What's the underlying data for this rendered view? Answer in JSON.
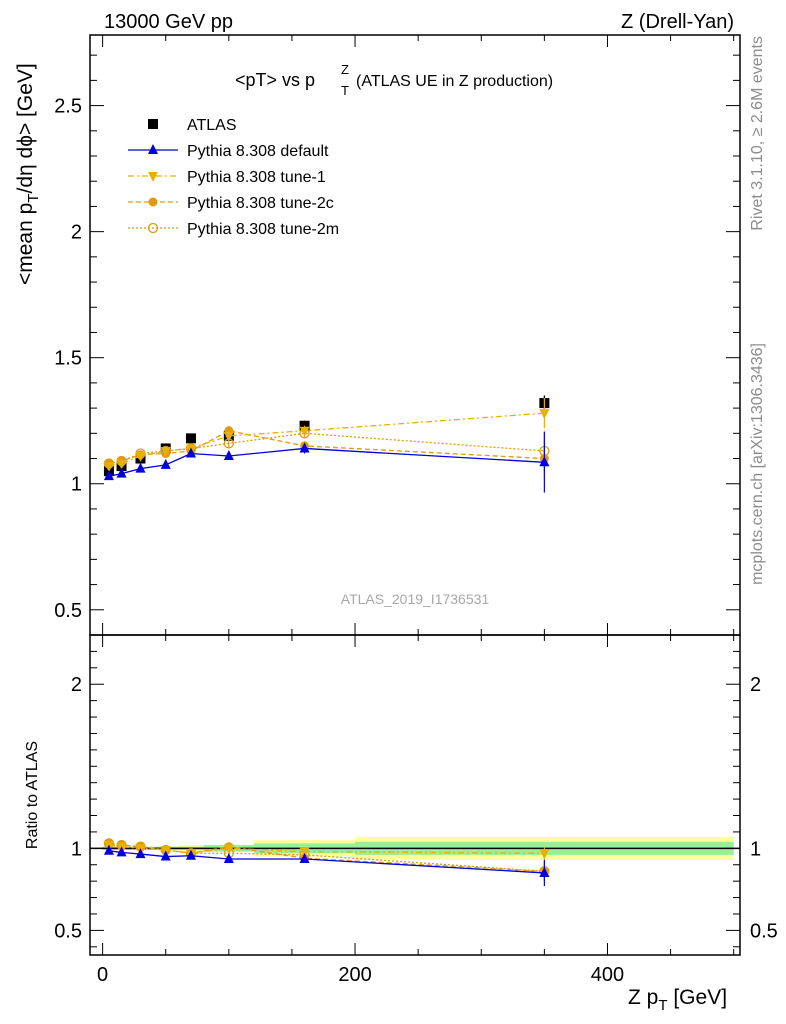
{
  "header": {
    "left": "13000 GeV pp",
    "right": "Z (Drell-Yan)"
  },
  "title": {
    "main": "<pT> vs p",
    "sup": "Z",
    "sub": "T",
    "tail": "(ATLAS UE in Z production)"
  },
  "y_label": {
    "pre": "<mean p",
    "sub": "T",
    "post": "/dη dϕ> [GeV]"
  },
  "ratio_label": "Ratio to ATLAS",
  "x_label": {
    "pre": "Z p",
    "sub": "T",
    "post": " [GeV]"
  },
  "side_text": {
    "rivet": "Rivet 3.1.10, ≥ 2.6M events",
    "mcplots": "mcplots.cern.ch [arXiv:1306.3436]"
  },
  "watermark": "ATLAS_2019_I1736531",
  "legend": [
    {
      "label": "ATLAS",
      "color": "#000000",
      "marker": "square"
    },
    {
      "label": "Pythia 8.308 default",
      "color": "#0000dd",
      "marker": "triangle-up"
    },
    {
      "label": "Pythia 8.308 tune-1",
      "color": "#e8b000",
      "marker": "triangle-down"
    },
    {
      "label": "Pythia 8.308 tune-2c",
      "color": "#e09a10",
      "marker": "circle-filled"
    },
    {
      "label": "Pythia 8.308 tune-2m",
      "color": "#e09a10",
      "marker": "circle-open"
    }
  ],
  "chart_data": {
    "type": "line",
    "x_label": "Z pT [GeV]",
    "y_label": "<mean pT/dη dϕ> [GeV]",
    "xlim": [
      -10,
      505
    ],
    "ylim": [
      0.4,
      2.78
    ],
    "ratio_ylim": [
      0.35,
      2.3
    ],
    "x_ticks": [
      "0",
      "200",
      "400"
    ],
    "y_ticks": [
      "0.5",
      "1",
      "1.5",
      "2",
      "2.5"
    ],
    "ratio_y_ticks": [
      "0.5",
      "1",
      "2"
    ],
    "x": [
      5,
      15,
      30,
      50,
      70,
      100,
      160,
      350
    ],
    "bin_edges": [
      0,
      10,
      20,
      40,
      60,
      80,
      120,
      200,
      500
    ],
    "atlas": {
      "name": "ATLAS",
      "values": [
        1.05,
        1.07,
        1.1,
        1.14,
        1.18,
        1.19,
        1.23,
        1.32
      ],
      "errors": [
        0.01,
        0.01,
        0.01,
        0.01,
        0.01,
        0.02,
        0.02,
        0.03
      ]
    },
    "ratio_band_inner": [
      0.01,
      0.01,
      0.01,
      0.01,
      0.01,
      0.02,
      0.03,
      0.04
    ],
    "ratio_band_outer": [
      0.01,
      0.01,
      0.01,
      0.01,
      0.02,
      0.02,
      0.05,
      0.07
    ],
    "series": [
      {
        "name": "Pythia 8.308 default",
        "values": [
          1.03,
          1.04,
          1.06,
          1.075,
          1.12,
          1.11,
          1.14,
          1.085
        ],
        "errors": [
          0.005,
          0.005,
          0.005,
          0.01,
          0.01,
          0.01,
          0.02,
          0.12
        ],
        "ratio": [
          0.985,
          0.975,
          0.965,
          0.95,
          0.955,
          0.935,
          0.935,
          0.85
        ],
        "ratio_errors": [
          0.01,
          0.01,
          0.01,
          0.01,
          0.01,
          0.01,
          0.02,
          0.08
        ]
      },
      {
        "name": "Pythia 8.308 tune-1",
        "values": [
          1.07,
          1.08,
          1.11,
          1.13,
          1.14,
          1.19,
          1.21,
          1.28
        ],
        "errors": [
          0.005,
          0.005,
          0.005,
          0.01,
          0.01,
          0.02,
          0.02,
          0.06
        ],
        "ratio": [
          1.02,
          1.01,
          1.0,
          0.99,
          0.97,
          1.0,
          0.98,
          0.97
        ],
        "ratio_errors": [
          0.01,
          0.01,
          0.01,
          0.01,
          0.01,
          0.02,
          0.02,
          0.04
        ]
      },
      {
        "name": "Pythia 8.308 tune-2c",
        "values": [
          1.08,
          1.09,
          1.115,
          1.12,
          1.13,
          1.21,
          1.15,
          1.1
        ],
        "errors": [
          0.005,
          0.005,
          0.005,
          0.01,
          0.01,
          0.02,
          0.02,
          0.08
        ],
        "ratio": [
          1.03,
          1.02,
          1.01,
          0.99,
          0.97,
          1.01,
          0.94,
          0.86
        ],
        "ratio_errors": [
          0.01,
          0.01,
          0.01,
          0.01,
          0.01,
          0.02,
          0.02,
          0.06
        ]
      },
      {
        "name": "Pythia 8.308 tune-2m",
        "values": [
          1.08,
          1.09,
          1.12,
          1.13,
          1.14,
          1.16,
          1.2,
          1.13
        ],
        "errors": [
          0.005,
          0.005,
          0.005,
          0.01,
          0.01,
          0.02,
          0.02,
          0.08
        ],
        "ratio": [
          1.03,
          1.02,
          1.01,
          0.99,
          0.97,
          0.97,
          0.96,
          0.86
        ],
        "ratio_errors": [
          0.01,
          0.01,
          0.01,
          0.01,
          0.01,
          0.02,
          0.02,
          0.06
        ]
      }
    ]
  }
}
